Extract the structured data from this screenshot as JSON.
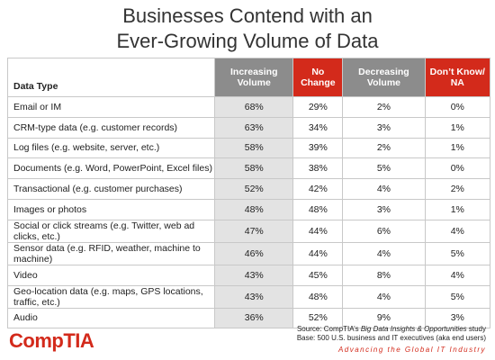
{
  "header": {
    "title_lines": [
      "Businesses Contend with an",
      "Ever-Growing Volume of Data"
    ]
  },
  "table": {
    "headers": [
      "Data Type",
      "Increasing Volume",
      "No Change",
      "Decreasing Volume",
      "Don’t Know/ NA"
    ],
    "rows": [
      [
        "Email or IM",
        "68%",
        "29%",
        "2%",
        "0%"
      ],
      [
        "CRM-type data (e.g. customer records)",
        "63%",
        "34%",
        "3%",
        "1%"
      ],
      [
        "Log files (e.g. website, server, etc.)",
        "58%",
        "39%",
        "2%",
        "1%"
      ],
      [
        "Documents (e.g. Word, PowerPoint, Excel files)",
        "58%",
        "38%",
        "5%",
        "0%"
      ],
      [
        "Transactional (e.g. customer purchases)",
        "52%",
        "42%",
        "4%",
        "2%"
      ],
      [
        "Images or photos",
        "48%",
        "48%",
        "3%",
        "1%"
      ],
      [
        "Social or click streams (e.g. Twitter, web ad clicks, etc.)",
        "47%",
        "44%",
        "6%",
        "4%"
      ],
      [
        "Sensor data (e.g. RFID, weather, machine to machine)",
        "46%",
        "44%",
        "4%",
        "5%"
      ],
      [
        "Video",
        "43%",
        "45%",
        "8%",
        "4%"
      ],
      [
        "Geo-location data (e.g. maps, GPS locations, traffic, etc.)",
        "43%",
        "48%",
        "4%",
        "5%"
      ],
      [
        "Audio",
        "36%",
        "52%",
        "9%",
        "3%"
      ]
    ]
  },
  "footer": {
    "source_prefix": "Source: CompTIA’s ",
    "source_study": "Big Data Insights & Opportunities",
    "source_suffix": " study",
    "base": "Base: 500 U.S. business and IT executives (aka end users)",
    "logo": "CompTIA",
    "tagline": "Advancing the Global IT Industry"
  }
}
